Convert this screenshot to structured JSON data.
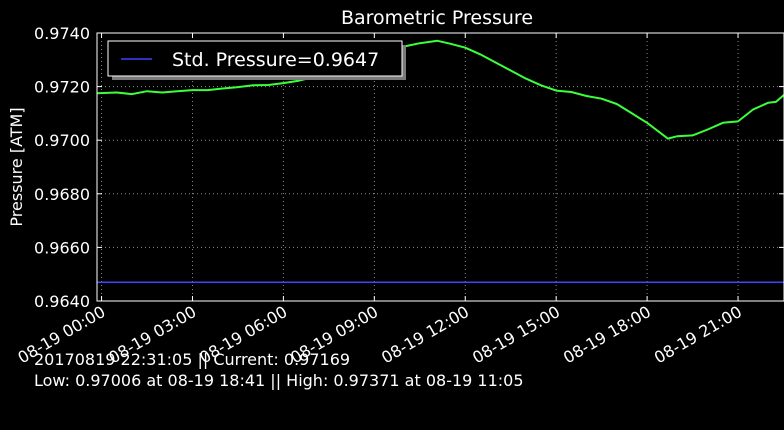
{
  "chart_data": {
    "type": "line",
    "title": "Barometric Pressure",
    "ylabel": "Pressure [ATM]",
    "xlabel": "",
    "ylim": [
      0.964,
      0.974
    ],
    "yticks": [
      "0.9640",
      "0.9660",
      "0.9680",
      "0.9700",
      "0.9720",
      "0.9740"
    ],
    "yticks_values": [
      0.964,
      0.966,
      0.968,
      0.97,
      0.972,
      0.974
    ],
    "xlim": [
      "2017-08-18 23:51",
      "2017-08-19 22:31"
    ],
    "xticks": [
      "08-19 00:00",
      "08-19 03:00",
      "08-19 06:00",
      "08-19 09:00",
      "08-19 12:00",
      "08-19 15:00",
      "08-19 18:00",
      "08-19 21:00"
    ],
    "xticks_values": [
      "2017-08-19 00:00",
      "2017-08-19 03:00",
      "2017-08-19 06:00",
      "2017-08-19 09:00",
      "2017-08-19 12:00",
      "2017-08-19 15:00",
      "2017-08-19 18:00",
      "2017-08-19 21:00"
    ],
    "grid": true,
    "legend_position": "top-left",
    "series": [
      {
        "name": "",
        "color": "#3cff3c",
        "x": [
          "2017-08-18 23:51",
          "2017-08-19 00:30",
          "2017-08-19 01:00",
          "2017-08-19 01:30",
          "2017-08-19 02:00",
          "2017-08-19 02:30",
          "2017-08-19 03:00",
          "2017-08-19 03:30",
          "2017-08-19 04:00",
          "2017-08-19 04:30",
          "2017-08-19 05:00",
          "2017-08-19 05:30",
          "2017-08-19 06:00",
          "2017-08-19 06:30",
          "2017-08-19 07:00",
          "2017-08-19 07:30",
          "2017-08-19 08:00",
          "2017-08-19 08:30",
          "2017-08-19 09:00",
          "2017-08-19 09:30",
          "2017-08-19 10:00",
          "2017-08-19 10:30",
          "2017-08-19 11:05",
          "2017-08-19 11:30",
          "2017-08-19 12:00",
          "2017-08-19 12:30",
          "2017-08-19 13:00",
          "2017-08-19 13:30",
          "2017-08-19 14:00",
          "2017-08-19 14:30",
          "2017-08-19 15:00",
          "2017-08-19 15:30",
          "2017-08-19 16:00",
          "2017-08-19 16:30",
          "2017-08-19 17:00",
          "2017-08-19 17:30",
          "2017-08-19 18:00",
          "2017-08-19 18:41",
          "2017-08-19 19:00",
          "2017-08-19 19:30",
          "2017-08-19 20:00",
          "2017-08-19 20:30",
          "2017-08-19 21:00",
          "2017-08-19 21:30",
          "2017-08-19 22:00",
          "2017-08-19 22:15",
          "2017-08-19 22:31"
        ],
        "values": [
          0.97175,
          0.97178,
          0.97172,
          0.97183,
          0.97178,
          0.97183,
          0.97187,
          0.97187,
          0.97193,
          0.97198,
          0.97205,
          0.97206,
          0.97213,
          0.97222,
          0.97235,
          0.9725,
          0.9727,
          0.973,
          0.97325,
          0.9734,
          0.9735,
          0.97362,
          0.97371,
          0.9736,
          0.97345,
          0.9732,
          0.9729,
          0.9726,
          0.9723,
          0.97205,
          0.97185,
          0.9718,
          0.97165,
          0.97155,
          0.97135,
          0.971,
          0.97065,
          0.97006,
          0.97015,
          0.97018,
          0.9704,
          0.97065,
          0.9707,
          0.97115,
          0.9714,
          0.97143,
          0.97169
        ]
      },
      {
        "name": "Std. Pressure=0.9647",
        "color": "#4040ff",
        "x": [
          "2017-08-18 23:51",
          "2017-08-19 22:31"
        ],
        "values": [
          0.9647,
          0.9647
        ]
      }
    ]
  },
  "legend": {
    "label": "Std. Pressure=0.9647",
    "line_color": "#4040ff"
  },
  "footer": {
    "line1": "20170819 22:31:05 || Current: 0.97169",
    "line2": "Low: 0.97006 at 08-19 18:41 || High: 0.97371 at 08-19 11:05"
  }
}
